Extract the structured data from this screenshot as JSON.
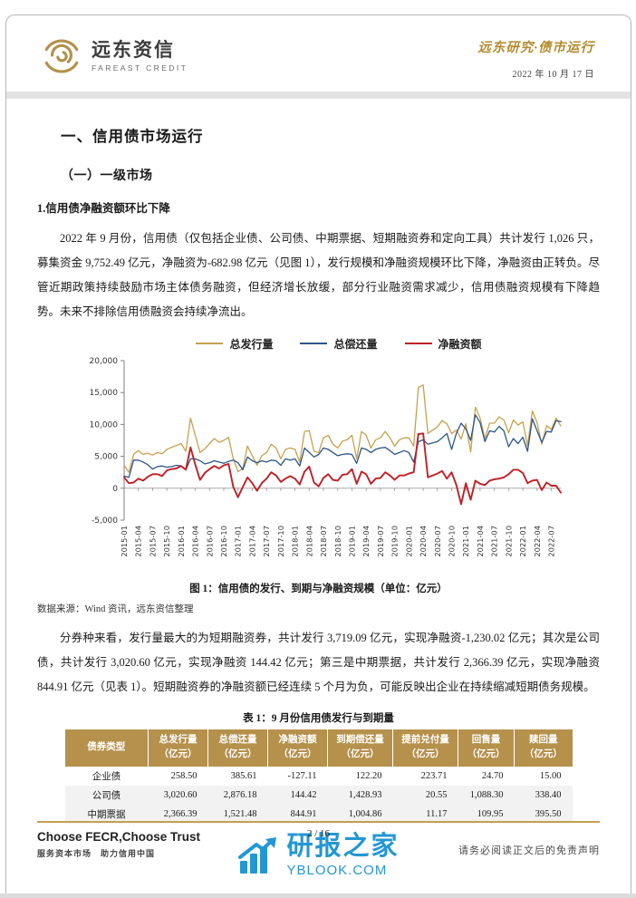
{
  "header": {
    "logo_cn": "远东资信",
    "logo_en": "FAREAST CREDIT",
    "series_title": "远东研究·债市运行",
    "date": "2022 年 10 月 17 日"
  },
  "sections": {
    "h1": "一、信用债市场运行",
    "h2": "（一）一级市场",
    "h3": "1.信用债净融资额环比下降",
    "para1": "2022 年 9 月份，信用债（仅包括企业债、公司债、中期票据、短期融资券和定向工具）共计发行 1,026 只，募集资金 9,752.49 亿元，净融资为-682.98 亿元（见图 1），发行规模和净融资规模环比下降，净融资由正转负。尽管近期政策持续鼓励市场主体债务融资，但经济增长放缓，部分行业融资需求减少，信用债融资规模有下降趋势。未来不排除信用债融资会持续净流出。",
    "para2": "分券种来看，发行量最大的为短期融资券，共计发行 3,719.09 亿元，实现净融资-1,230.02 亿元；其次是公司债，共计发行 3,020.60 亿元，实现净融资 144.42 亿元；第三是中期票据，共计发行 2,366.39 亿元，实现净融资 844.91 亿元（见表 1）。短期融资券的净融资额已经连续 5 个月为负，可能反映出企业在持续缩减短期债务规模。"
  },
  "chart": {
    "caption": "图 1：信用债的发行、到期与净融资规模（单位：亿元）",
    "source": "数据来源：Wind 资讯，远东资信整理"
  },
  "chart_data": {
    "type": "line",
    "title": "图 1：信用债的发行、到期与净融资规模（单位：亿元）",
    "x_start": "2015-01",
    "x_end": "2022-09",
    "x_freq": "monthly",
    "xticks": [
      "2015-01",
      "2015-04",
      "2015-07",
      "2015-10",
      "2016-01",
      "2016-04",
      "2016-07",
      "2016-10",
      "2017-01",
      "2017-04",
      "2017-07",
      "2017-10",
      "2018-01",
      "2018-04",
      "2018-07",
      "2018-10",
      "2019-01",
      "2019-04",
      "2019-07",
      "2019-10",
      "2020-01",
      "2020-04",
      "2020-07",
      "2020-10",
      "2021-01",
      "2021-04",
      "2021-07",
      "2021-10",
      "2022-01",
      "2022-04",
      "2022-07"
    ],
    "xtick_step": 3,
    "ylim": [
      -5000,
      20000
    ],
    "yticks": [
      {
        "v": 20000,
        "label": "20,000"
      },
      {
        "v": 15000,
        "label": "15,000"
      },
      {
        "v": 10000,
        "label": "10,000"
      },
      {
        "v": 5000,
        "label": "5,000"
      },
      {
        "v": 0,
        "label": "0"
      },
      {
        "v": -5000,
        "label": "-5,000"
      }
    ],
    "grid": false,
    "legend_position": "top",
    "series": [
      {
        "name": "总发行量",
        "color": "#c8a04d",
        "width": 1.3,
        "values": [
          3600,
          2500,
          5300,
          5900,
          5300,
          5500,
          5200,
          5600,
          5400,
          6100,
          6400,
          6700,
          7000,
          5800,
          11000,
          8300,
          5600,
          6200,
          7000,
          7800,
          7200,
          7500,
          8000,
          4600,
          2600,
          3100,
          6600,
          5100,
          3600,
          5100,
          5600,
          6900,
          6300,
          4600,
          6100,
          6300,
          6100,
          4100,
          8900,
          9000,
          5800,
          5600,
          7900,
          8300,
          6900,
          6300,
          7400,
          7600,
          8300,
          4600,
          8900,
          8300,
          6300,
          7600,
          7900,
          8900,
          7900,
          6600,
          7600,
          7900,
          7900,
          6600,
          15800,
          16200,
          8600,
          9100,
          9600,
          10600,
          10100,
          8600,
          9100,
          7700,
          10100,
          5700,
          12700,
          11000,
          7800,
          10200,
          10200,
          11200,
          10700,
          8700,
          10700,
          9900,
          10400,
          6600,
          12100,
          10300,
          6900,
          9800,
          9200,
          11000,
          9752
        ]
      },
      {
        "name": "总偿还量",
        "color": "#2b5687",
        "width": 1.3,
        "values": [
          1900,
          1700,
          4400,
          4400,
          4100,
          3700,
          3000,
          3400,
          3500,
          3300,
          3400,
          3600,
          3500,
          2900,
          4600,
          4600,
          4300,
          3800,
          4000,
          4300,
          4100,
          3900,
          4200,
          4400,
          4000,
          2900,
          4900,
          4300,
          4000,
          4300,
          4100,
          4400,
          4300,
          3600,
          4600,
          4400,
          4600,
          3500,
          6300,
          5600,
          4900,
          5300,
          6300,
          6100,
          5600,
          5100,
          5300,
          5400,
          5300,
          3900,
          6300,
          6100,
          5600,
          6100,
          6300,
          6400,
          5900,
          5300,
          5600,
          5900,
          5600,
          4100,
          7300,
          7600,
          6900,
          7100,
          7300,
          7900,
          8600,
          6100,
          8600,
          10200,
          9300,
          7500,
          11500,
          10300,
          7300,
          9000,
          8800,
          9700,
          9000,
          6500,
          7800,
          7000,
          8000,
          5800,
          10900,
          9000,
          7200,
          8900,
          8800,
          10600,
          10435
        ]
      },
      {
        "name": "净融资额",
        "color": "#c01f26",
        "width": 1.9,
        "values": [
          1700,
          800,
          900,
          1500,
          1200,
          1800,
          2200,
          2200,
          1900,
          2800,
          3000,
          3100,
          3500,
          2900,
          6400,
          3700,
          1300,
          2400,
          3000,
          3500,
          3100,
          3600,
          3800,
          200,
          -1400,
          200,
          1700,
          800,
          -400,
          800,
          1500,
          2500,
          2000,
          1000,
          1500,
          1900,
          1500,
          600,
          2600,
          3400,
          900,
          300,
          1600,
          2200,
          1300,
          1200,
          2100,
          2200,
          3000,
          700,
          2600,
          2200,
          700,
          1500,
          1600,
          2500,
          2000,
          1300,
          2000,
          2000,
          2300,
          2500,
          8500,
          8600,
          1700,
          2000,
          2300,
          2700,
          1500,
          2500,
          500,
          -2500,
          800,
          -1800,
          1200,
          700,
          500,
          1200,
          1400,
          1500,
          1700,
          2200,
          2900,
          2900,
          2400,
          800,
          1200,
          1300,
          -300,
          900,
          400,
          400,
          -683
        ]
      }
    ]
  },
  "table": {
    "caption": "表 1：9 月份信用债发行与到期量",
    "headers": [
      {
        "line1": "债券类型",
        "line2": ""
      },
      {
        "line1": "总发行量",
        "line2": "（亿元）"
      },
      {
        "line1": "总偿还量",
        "line2": "（亿元）"
      },
      {
        "line1": "净融资额",
        "line2": "（亿元）"
      },
      {
        "line1": "到期偿还量",
        "line2": "（亿元）"
      },
      {
        "line1": "提前兑付量",
        "line2": "（亿元）"
      },
      {
        "line1": "回售量",
        "line2": "（亿元）"
      },
      {
        "line1": "赎回量",
        "line2": "（亿元）"
      }
    ],
    "rows": [
      [
        "企业债",
        "258.50",
        "385.61",
        "-127.11",
        "122.20",
        "223.71",
        "24.70",
        "15.00"
      ],
      [
        "公司债",
        "3,020.60",
        "2,876.18",
        "144.42",
        "1,428.93",
        "20.55",
        "1,088.30",
        "338.40"
      ],
      [
        "中期票据",
        "2,366.39",
        "1,521.48",
        "844.91",
        "1,004.86",
        "11.17",
        "109.95",
        "395.50"
      ]
    ]
  },
  "footer": {
    "slogan_en": "Choose FECR,Choose Trust",
    "slogan_cn": "服务资本市场　助力信用中国",
    "page": "2 / 16",
    "disclaimer": "请务必阅读正文后的免责声明",
    "watermark_cn": "研报之家",
    "watermark_en": "YBLOOK.COM"
  },
  "colors": {
    "accent_gold": "#b5914c",
    "band_gray": "#e3e3e3",
    "watermark_blue": "#2497d3"
  }
}
